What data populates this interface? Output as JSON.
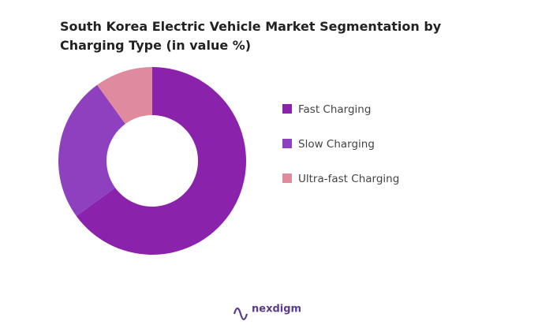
{
  "chart_data": {
    "type": "donut",
    "title": "South Korea Electric Vehicle Market Segmentation by Charging Type (in value %)",
    "categories": [
      "Fast Charging",
      "Slow Charging",
      "Ultra-fast Charging"
    ],
    "values": [
      65,
      25,
      10
    ],
    "colors": [
      "#8b22ab",
      "#8e40bf",
      "#e08a9e"
    ],
    "legend": "right"
  },
  "footer": {
    "logo": "nexdigm"
  }
}
